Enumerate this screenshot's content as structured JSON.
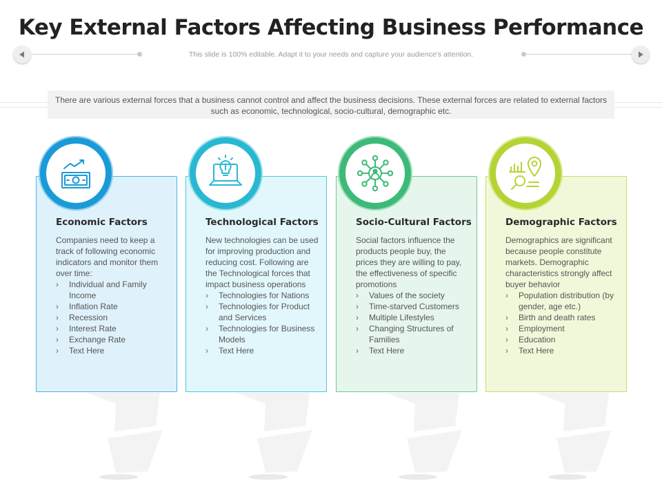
{
  "header": {
    "title": "Key External Factors Affecting Business Performance",
    "subtitle": "This slide is 100% editable. Adapt it to your needs and capture your audience's attention."
  },
  "intro": "There are various external forces that a business cannot control and affect the business decisions. These external forces are related to external factors such as economic, technological, socio-cultural, demographic etc.",
  "colors": {
    "blue": "#1a9ad6",
    "cyan": "#29b8d2",
    "green": "#3dba78",
    "lime": "#b6d336"
  },
  "cards": [
    {
      "title": "Economic Factors",
      "icon": "money-growth-icon",
      "description": "Companies need to keep a track of following economic indicators and monitor them over time:",
      "items": [
        "Individual and Family Income",
        "Inflation Rate",
        "Recession",
        "Interest Rate",
        "Exchange Rate",
        "Text Here"
      ]
    },
    {
      "title": "Technological Factors",
      "icon": "lightbulb-laptop-icon",
      "description": "New technologies can be used for improving production and reducing cost. Following are the Technological forces that impact business operations",
      "items": [
        "Technologies for Nations",
        "Technologies for Product and Services",
        "Technologies for Business Models",
        "Text Here"
      ]
    },
    {
      "title": "Socio-Cultural Factors",
      "icon": "social-network-icon",
      "description": "Social factors influence the products people buy, the prices they are willing to pay, the effectiveness of specific promotions",
      "items": [
        "Values of the society",
        "Time-starved Customers",
        "Multiple Lifestyles",
        "Changing Structures of Families",
        "Text Here"
      ]
    },
    {
      "title": "Demographic Factors",
      "icon": "location-analytics-icon",
      "description": "Demographics are significant because people constitute markets. Demographic characteristics strongly affect buyer behavior",
      "items": [
        "Population distribution (by gender, age etc.)",
        "Birth and death rates",
        "Employment",
        "Education",
        "Text Here"
      ]
    }
  ]
}
